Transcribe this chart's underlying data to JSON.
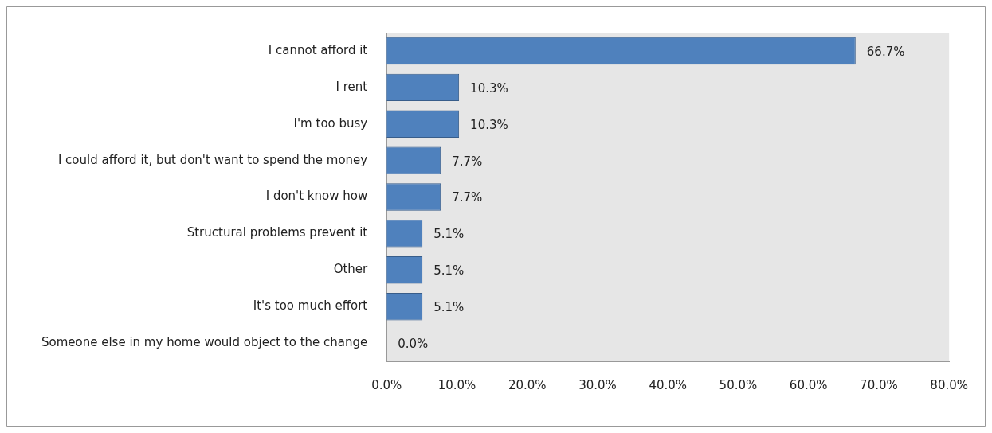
{
  "chart_data": {
    "type": "bar",
    "orientation": "horizontal",
    "categories": [
      "I cannot afford it",
      "I rent",
      "I'm too busy",
      "I could afford it, but don't want to spend the money",
      "I don't know how",
      "Structural problems prevent it",
      "Other",
      "It's too much effort",
      "Someone else in my home would object to the change"
    ],
    "values": [
      66.7,
      10.3,
      10.3,
      7.7,
      7.7,
      5.1,
      5.1,
      5.1,
      0.0
    ],
    "color": "#4f81bd",
    "value_labels": [
      "66.7%",
      "10.3%",
      "10.3%",
      "7.7%",
      "7.7%",
      "5.1%",
      "5.1%",
      "5.1%",
      "0.0%"
    ],
    "xlim": [
      0,
      80
    ],
    "xticks": [
      {
        "value": 0,
        "label": "0.0%"
      },
      {
        "value": 10,
        "label": "10.0%"
      },
      {
        "value": 20,
        "label": "20.0%"
      },
      {
        "value": 30,
        "label": "30.0%"
      },
      {
        "value": 40,
        "label": "40.0%"
      },
      {
        "value": 50,
        "label": "50.0%"
      },
      {
        "value": 60,
        "label": "60.0%"
      },
      {
        "value": 70,
        "label": "70.0%"
      },
      {
        "value": 80,
        "label": "80.0%"
      }
    ],
    "grid": false,
    "legend": false
  }
}
